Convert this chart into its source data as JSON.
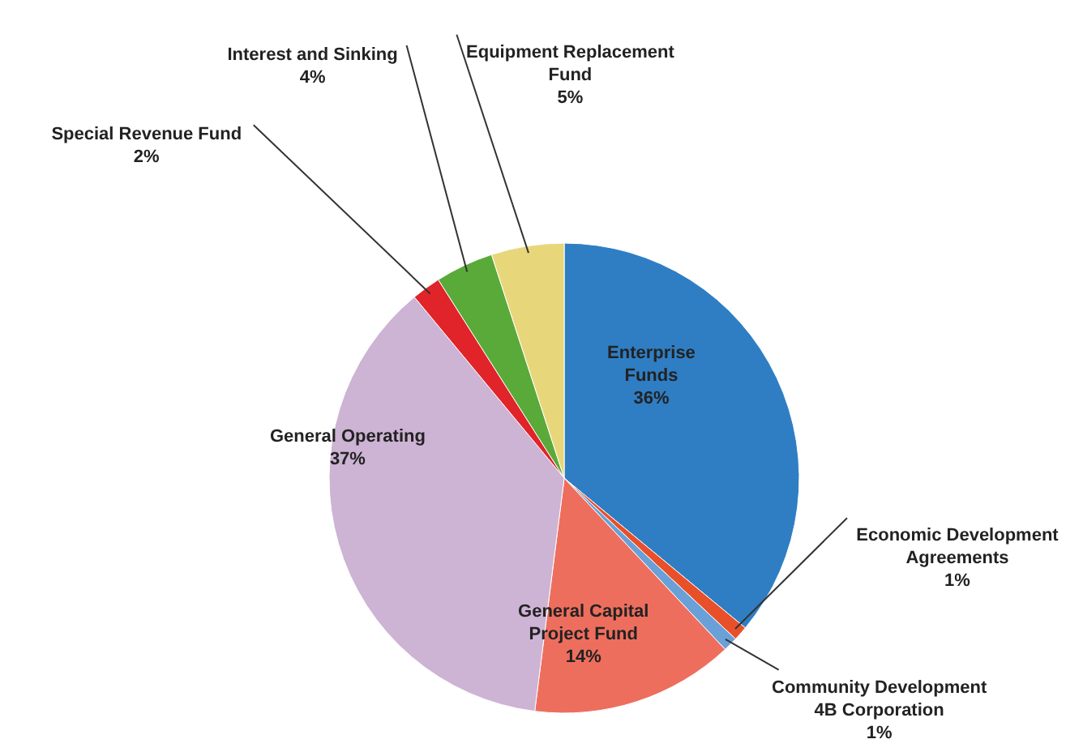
{
  "chart_data": {
    "type": "pie",
    "categories": [
      "Enterprise Funds",
      "Economic Development Agreements",
      "Community Development 4B Corporation",
      "General Capital Project Fund",
      "General Operating",
      "Special Revenue Fund",
      "Interest and Sinking",
      "Equipment Replacement Fund"
    ],
    "values": [
      36,
      1,
      1,
      14,
      37,
      2,
      4,
      5
    ],
    "colors": [
      "#2f7ec4",
      "#e8502a",
      "#6aa0d8",
      "#ee6e5e",
      "#cdb3d4",
      "#e0242a",
      "#5aaa3a",
      "#e8d77a"
    ],
    "value_labels": [
      "36%",
      "1%",
      "1%",
      "14%",
      "37%",
      "2%",
      "4%",
      "5%"
    ]
  }
}
